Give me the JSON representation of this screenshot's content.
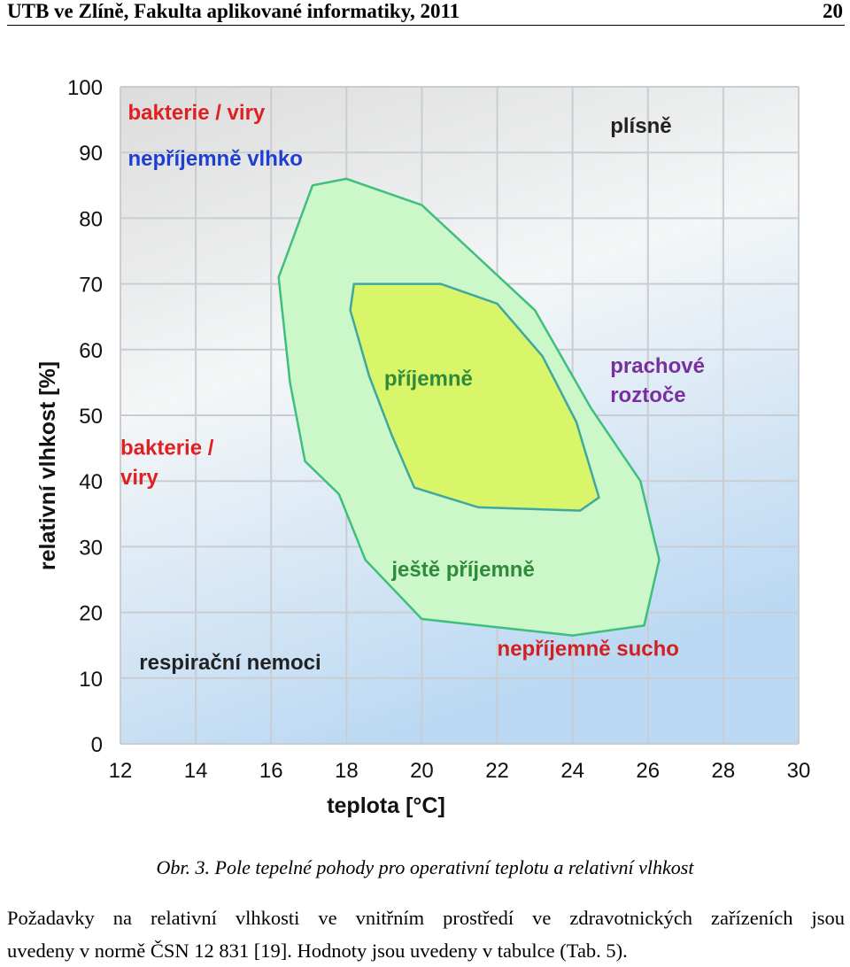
{
  "header": {
    "left": "UTB ve Zlíně, Fakulta aplikované informatiky, 2011",
    "page_number": "20"
  },
  "chart_data": {
    "type": "area",
    "xlabel": "teplota [°C]",
    "ylabel": "relativní vlhkost [%]",
    "xlim": [
      12,
      30
    ],
    "ylim": [
      0,
      100
    ],
    "xticks": [
      "12",
      "14",
      "16",
      "18",
      "20",
      "22",
      "24",
      "26",
      "28",
      "30"
    ],
    "yticks": [
      "0",
      "10",
      "20",
      "30",
      "40",
      "50",
      "60",
      "70",
      "80",
      "90",
      "100"
    ],
    "grid": true,
    "regions": [
      {
        "name": "ještě příjemně",
        "color": "#ccf7c8",
        "edge": "#3fbf7f",
        "points": [
          [
            16.2,
            71
          ],
          [
            17.1,
            85
          ],
          [
            18.0,
            86
          ],
          [
            20.0,
            82
          ],
          [
            23.0,
            66
          ],
          [
            24.5,
            51
          ],
          [
            25.8,
            40
          ],
          [
            26.3,
            28
          ],
          [
            25.9,
            18
          ],
          [
            24.0,
            16.5
          ],
          [
            20.0,
            19
          ],
          [
            18.5,
            28
          ],
          [
            17.8,
            38
          ],
          [
            16.9,
            43
          ],
          [
            16.5,
            55
          ]
        ]
      },
      {
        "name": "příjemně",
        "color": "#d9f56a",
        "edge": "#3ea8a0",
        "points": [
          [
            18.2,
            70
          ],
          [
            20.5,
            70
          ],
          [
            22.0,
            67
          ],
          [
            23.2,
            59
          ],
          [
            24.1,
            49
          ],
          [
            24.7,
            37.5
          ],
          [
            24.2,
            35.5
          ],
          [
            21.5,
            36
          ],
          [
            19.8,
            39
          ],
          [
            19.2,
            47
          ],
          [
            18.6,
            56
          ],
          [
            18.1,
            66
          ]
        ]
      }
    ],
    "labels": [
      {
        "text": "bakterie / viry",
        "x": 12.2,
        "y": 95,
        "color": "#e02020"
      },
      {
        "text": "nepříjemně vlhko",
        "x": 12.2,
        "y": 88,
        "color": "#1f3fd0"
      },
      {
        "text": "plísně",
        "x": 25.0,
        "y": 93,
        "color": "#222222"
      },
      {
        "text": "příjemně",
        "x": 19.0,
        "y": 54.5,
        "color": "#2e8b3a"
      },
      {
        "text": "prachové",
        "x": 25.0,
        "y": 56.5,
        "color": "#7a2fa0"
      },
      {
        "text": "roztoče",
        "x": 25.0,
        "y": 52,
        "color": "#7a2fa0"
      },
      {
        "text": "bakterie /",
        "x": 12.0,
        "y": 44,
        "color": "#e02020"
      },
      {
        "text": "viry",
        "x": 12.0,
        "y": 39.5,
        "color": "#e02020"
      },
      {
        "text": "ještě příjemně",
        "x": 19.2,
        "y": 25.5,
        "color": "#2e8b3a"
      },
      {
        "text": "respirační nemoci",
        "x": 12.5,
        "y": 11.3,
        "color": "#222222"
      },
      {
        "text": "nepříjemně sucho",
        "x": 22.0,
        "y": 13.4,
        "color": "#d02020"
      }
    ]
  },
  "caption": "Obr. 3. Pole tepelné pohody pro operativní teplotu a relativní vlhkost",
  "body": {
    "line1": "Požadavky na relativní vlhkosti ve vnitřním prostředí ve zdravotnických zařízeních jsou",
    "line2": "uvedeny v normě ČSN 12 831 [19]. Hodnoty jsou uvedeny v tabulce (Tab. 5)."
  }
}
